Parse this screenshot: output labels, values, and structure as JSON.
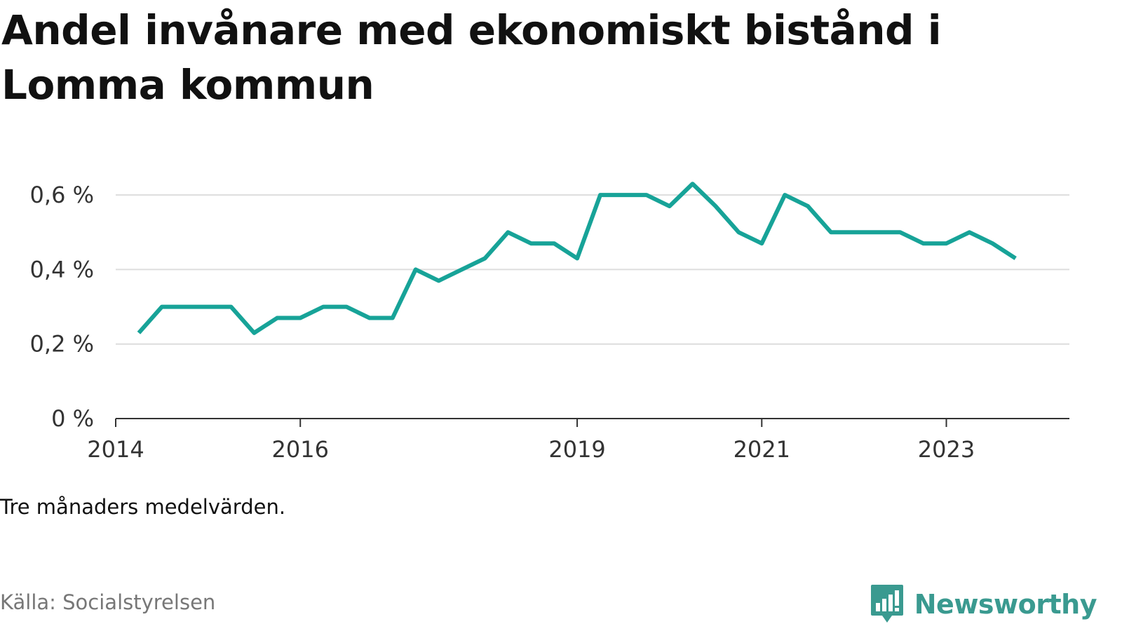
{
  "title": "Andel invånare med ekonomiskt bistånd i Lomma kommun",
  "note": "Tre månaders medelvärden.",
  "source": "Källa: Socialstyrelsen",
  "brand": {
    "name": "Newsworthy",
    "icon": "newsworthy-logo-icon",
    "color": "#3a9a90"
  },
  "chart_data": {
    "type": "line",
    "title": "Andel invånare med ekonomiskt bistånd i Lomma kommun",
    "xlabel": "",
    "ylabel": "",
    "ylim": [
      0,
      0.7
    ],
    "yticks": [
      0,
      0.2,
      0.4,
      0.6
    ],
    "ytick_labels": [
      "0 %",
      "0,2 %",
      "0,4 %",
      "0,6 %"
    ],
    "xlim": [
      "2014-01",
      "2024-05"
    ],
    "xticks": [
      "2014-01",
      "2016-01",
      "2019-01",
      "2021-01",
      "2023-01"
    ],
    "xtick_labels": [
      "2014",
      "2016",
      "2019",
      "2021",
      "2023"
    ],
    "grid": true,
    "line_color": "#17a398",
    "series": [
      {
        "x": [
          "2014-04",
          "2014-07",
          "2014-10",
          "2015-01",
          "2015-04",
          "2015-07",
          "2015-10",
          "2016-01",
          "2016-04",
          "2016-07",
          "2016-10",
          "2017-01",
          "2017-04",
          "2017-07",
          "2017-10",
          "2018-01",
          "2018-04",
          "2018-07",
          "2018-10",
          "2019-01",
          "2019-04",
          "2019-07",
          "2019-10",
          "2020-01",
          "2020-04",
          "2020-07",
          "2020-10",
          "2021-01",
          "2021-04",
          "2021-07",
          "2021-10",
          "2022-01",
          "2022-04",
          "2022-07",
          "2022-10",
          "2023-01",
          "2023-04",
          "2023-07",
          "2023-10"
        ],
        "values": [
          0.23,
          0.3,
          0.3,
          0.3,
          0.3,
          0.23,
          0.27,
          0.27,
          0.3,
          0.3,
          0.27,
          0.27,
          0.4,
          0.37,
          0.4,
          0.43,
          0.5,
          0.47,
          0.47,
          0.43,
          0.6,
          0.6,
          0.6,
          0.57,
          0.63,
          0.57,
          0.5,
          0.47,
          0.6,
          0.57,
          0.5,
          0.5,
          0.5,
          0.5,
          0.47,
          0.47,
          0.5,
          0.47,
          0.43
        ]
      }
    ]
  }
}
